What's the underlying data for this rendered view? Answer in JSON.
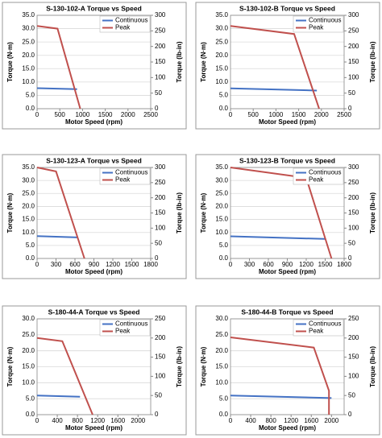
{
  "chart_data": [
    {
      "type": "line",
      "title": "S-130-102-A Torque vs Speed",
      "x_label": "Motor Speed (rpm)",
      "y_label": "Torque (N·m)",
      "y2_label": "Torque (lb-in)",
      "xlim": [
        0,
        2500
      ],
      "xticks": [
        0,
        500,
        1000,
        1500,
        2000,
        2500
      ],
      "ylim": [
        0,
        35
      ],
      "yticks": [
        {
          "value": 0,
          "label": "0.0"
        },
        {
          "value": 5,
          "label": "5.0"
        },
        {
          "value": 10,
          "label": "10.0"
        },
        {
          "value": 15,
          "label": "15.0"
        },
        {
          "value": 20,
          "label": "20.0"
        },
        {
          "value": 25,
          "label": "25.0"
        },
        {
          "value": 30,
          "label": "30.0"
        },
        {
          "value": 35,
          "label": "35.0"
        }
      ],
      "y2lim": [
        0,
        300
      ],
      "y2ticks": [
        0,
        50,
        100,
        150,
        200,
        250,
        300
      ],
      "legend": "upper right",
      "series": [
        {
          "name": "Continuous",
          "color": "#4472c4",
          "x": [
            0,
            880
          ],
          "values": [
            7.7,
            7.3
          ]
        },
        {
          "name": "Peak",
          "color": "#c0504d",
          "x": [
            0,
            450,
            950
          ],
          "values": [
            31,
            30,
            0
          ]
        }
      ]
    },
    {
      "type": "line",
      "title": "S-130-102-B Torque vs Speed",
      "x_label": "Motor Speed (rpm)",
      "y_label": "Torque (N·m)",
      "y2_label": "Torque (lb-in)",
      "xlim": [
        0,
        2500
      ],
      "xticks": [
        0,
        500,
        1000,
        1500,
        2000,
        2500
      ],
      "ylim": [
        0,
        35
      ],
      "yticks": [
        {
          "value": 0,
          "label": "0.0"
        },
        {
          "value": 5,
          "label": "5.0"
        },
        {
          "value": 10,
          "label": "10.0"
        },
        {
          "value": 15,
          "label": "15.0"
        },
        {
          "value": 20,
          "label": "20.0"
        },
        {
          "value": 25,
          "label": "25.0"
        },
        {
          "value": 30,
          "label": "30.0"
        },
        {
          "value": 35,
          "label": "35.0"
        }
      ],
      "y2lim": [
        0,
        300
      ],
      "y2ticks": [
        0,
        50,
        100,
        150,
        200,
        250,
        300
      ],
      "legend": "upper right",
      "series": [
        {
          "name": "Continuous",
          "color": "#4472c4",
          "x": [
            0,
            1900
          ],
          "values": [
            7.6,
            6.8
          ]
        },
        {
          "name": "Peak",
          "color": "#c0504d",
          "x": [
            0,
            1400,
            1950
          ],
          "values": [
            31,
            28,
            0
          ]
        }
      ]
    },
    {
      "type": "line",
      "title": "S-130-123-A Torque vs Speed",
      "x_label": "Motor Speed (rpm)",
      "y_label": "Torque (N·m)",
      "y2_label": "Torque (lb-in)",
      "xlim": [
        0,
        1800
      ],
      "xticks": [
        0,
        300,
        600,
        900,
        1200,
        1500,
        1800
      ],
      "ylim": [
        0,
        35
      ],
      "yticks": [
        {
          "value": 0,
          "label": "0.0"
        },
        {
          "value": 5,
          "label": "5.0"
        },
        {
          "value": 10,
          "label": "10.0"
        },
        {
          "value": 15,
          "label": "15.0"
        },
        {
          "value": 20,
          "label": "20.0"
        },
        {
          "value": 25,
          "label": "25.0"
        },
        {
          "value": 30,
          "label": "30.0"
        },
        {
          "value": 35,
          "label": "35.0"
        }
      ],
      "y2lim": [
        0,
        300
      ],
      "y2ticks": [
        0,
        50,
        100,
        150,
        200,
        250,
        300
      ],
      "legend": "upper right",
      "series": [
        {
          "name": "Continuous",
          "color": "#4472c4",
          "x": [
            0,
            650
          ],
          "values": [
            8.6,
            8.1
          ]
        },
        {
          "name": "Peak",
          "color": "#c0504d",
          "x": [
            0,
            300,
            750
          ],
          "values": [
            35,
            33.5,
            0
          ]
        }
      ]
    },
    {
      "type": "line",
      "title": "S-130-123-B Torque vs Speed",
      "x_label": "Motor Speed (rpm)",
      "y_label": "Torque (N·m)",
      "y2_label": "Torque (lb-in)",
      "xlim": [
        0,
        1800
      ],
      "xticks": [
        0,
        300,
        600,
        900,
        1200,
        1500,
        1800
      ],
      "ylim": [
        0,
        35
      ],
      "yticks": [
        {
          "value": 0,
          "label": "0.0"
        },
        {
          "value": 5,
          "label": "5.0"
        },
        {
          "value": 10,
          "label": "10.0"
        },
        {
          "value": 15,
          "label": "15.0"
        },
        {
          "value": 20,
          "label": "20.0"
        },
        {
          "value": 25,
          "label": "25.0"
        },
        {
          "value": 30,
          "label": "30.0"
        },
        {
          "value": 35,
          "label": "35.0"
        }
      ],
      "y2lim": [
        0,
        300
      ],
      "y2ticks": [
        0,
        50,
        100,
        150,
        200,
        250,
        300
      ],
      "legend": "upper right",
      "series": [
        {
          "name": "Continuous",
          "color": "#4472c4",
          "x": [
            0,
            1500
          ],
          "values": [
            8.5,
            7.5
          ]
        },
        {
          "name": "Peak",
          "color": "#c0504d",
          "x": [
            0,
            1200,
            1600
          ],
          "values": [
            35,
            31,
            0
          ]
        }
      ]
    },
    {
      "type": "line",
      "title": "S-180-44-A Torque vs Speed",
      "x_label": "Motor Speed (rpm)",
      "y_label": "Torque (N·m)",
      "y2_label": "Torque (lb-in)",
      "xlim": [
        0,
        2250
      ],
      "xticks": [
        0,
        400,
        800,
        1200,
        1600,
        2000
      ],
      "ylim": [
        0,
        30
      ],
      "yticks": [
        {
          "value": 0,
          "label": "0.0"
        },
        {
          "value": 5,
          "label": "5.0"
        },
        {
          "value": 10,
          "label": "10.0"
        },
        {
          "value": 15,
          "label": "15.0"
        },
        {
          "value": 20,
          "label": "20.0"
        },
        {
          "value": 25,
          "label": "25.0"
        },
        {
          "value": 30,
          "label": "30.0"
        }
      ],
      "y2lim": [
        0,
        250
      ],
      "y2ticks": [
        0,
        50,
        100,
        150,
        200,
        250
      ],
      "legend": "upper right",
      "series": [
        {
          "name": "Continuous",
          "color": "#4472c4",
          "x": [
            0,
            850
          ],
          "values": [
            6,
            5.6
          ]
        },
        {
          "name": "Peak",
          "color": "#c0504d",
          "x": [
            0,
            500,
            1100
          ],
          "values": [
            24,
            23,
            0
          ]
        }
      ]
    },
    {
      "type": "line",
      "title": "S-180-44-B Torque vs Speed",
      "x_label": "Motor Speed (rpm)",
      "y_label": "Torque (N·m)",
      "y2_label": "Torque (lb-in)",
      "xlim": [
        0,
        2250
      ],
      "xticks": [
        0,
        400,
        800,
        1200,
        1600,
        2000
      ],
      "ylim": [
        0,
        30
      ],
      "yticks": [
        {
          "value": 0,
          "label": "0.0"
        },
        {
          "value": 5,
          "label": "5.0"
        },
        {
          "value": 10,
          "label": "10.0"
        },
        {
          "value": 15,
          "label": "15.0"
        },
        {
          "value": 20,
          "label": "20.0"
        },
        {
          "value": 25,
          "label": "25.0"
        },
        {
          "value": 30,
          "label": "30.0"
        }
      ],
      "y2lim": [
        0,
        250
      ],
      "y2ticks": [
        0,
        50,
        100,
        150,
        200,
        250
      ],
      "legend": "upper right",
      "series": [
        {
          "name": "Continuous",
          "color": "#4472c4",
          "x": [
            0,
            2000
          ],
          "values": [
            6,
            5.2
          ]
        },
        {
          "name": "Peak",
          "color": "#c0504d",
          "x": [
            0,
            1650,
            1950,
            1950
          ],
          "values": [
            24.2,
            21,
            7.5,
            0
          ]
        }
      ]
    }
  ]
}
